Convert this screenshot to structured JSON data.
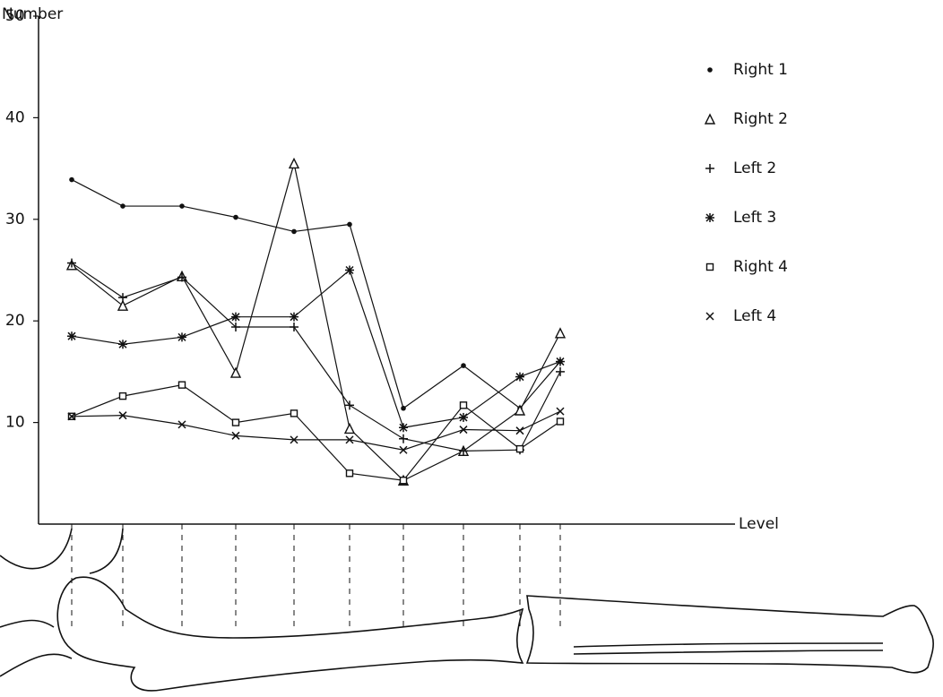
{
  "chart_data": {
    "type": "line",
    "y_label": "Number",
    "x_label": "Level",
    "categories": [
      null,
      null,
      null,
      null,
      null,
      null,
      null,
      null,
      null,
      null
    ],
    "ylim": [
      0,
      50
    ],
    "yticks": [
      10,
      20,
      30,
      40,
      50
    ],
    "grid": false,
    "series": [
      {
        "name": "Right 1",
        "marker": "dot",
        "color": "#111111",
        "values": [
          33.9,
          31.3,
          31.3,
          30.2,
          28.8,
          29.5,
          11.4,
          15.6,
          11.4,
          16.0
        ]
      },
      {
        "name": "Right 2",
        "marker": "triangle",
        "color": "#111111",
        "values": [
          25.5,
          21.5,
          24.4,
          14.9,
          35.5,
          9.4,
          4.3,
          7.2,
          11.2,
          18.8
        ]
      },
      {
        "name": "Left 2",
        "marker": "plus",
        "color": "#111111",
        "values": [
          25.7,
          22.3,
          24.3,
          19.4,
          19.4,
          11.7,
          8.4,
          7.2,
          7.3,
          15.0
        ]
      },
      {
        "name": "Left 3",
        "marker": "star",
        "color": "#111111",
        "values": [
          18.5,
          17.7,
          18.4,
          20.4,
          20.4,
          25.0,
          9.5,
          10.5,
          14.5,
          16.0
        ]
      },
      {
        "name": "Right 4",
        "marker": "square",
        "color": "#111111",
        "values": [
          10.6,
          12.6,
          13.7,
          10.0,
          10.9,
          5.0,
          4.3,
          11.7,
          7.4,
          10.1
        ]
      },
      {
        "name": "Left 4",
        "marker": "x",
        "color": "#111111",
        "values": [
          10.6,
          10.7,
          9.8,
          8.7,
          8.3,
          8.3,
          7.3,
          9.3,
          9.2,
          11.1
        ]
      }
    ]
  }
}
